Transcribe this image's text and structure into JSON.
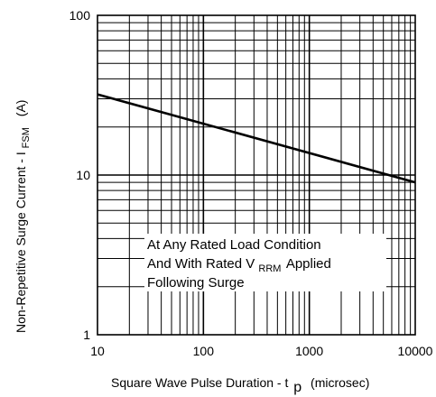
{
  "chart_data": {
    "type": "line",
    "x_scale": "log",
    "y_scale": "log",
    "xlim": [
      10,
      10000
    ],
    "ylim": [
      1,
      100
    ],
    "x_ticks": [
      "10",
      "100",
      "1000",
      "10000"
    ],
    "y_ticks": [
      "1",
      "10",
      "100"
    ],
    "grid": true,
    "xlabel": {
      "main": "Square Wave Pulse Duration - t",
      "sub": "p",
      "suffix": "(microsec)"
    },
    "ylabel": {
      "main": "Non-Repetitive Surge Current - I",
      "sub": "FSM",
      "suffix": "(A)"
    },
    "annotation": {
      "line1": "At Any Rated Load Condition",
      "line2_pre": "And With Rated V",
      "line2_sub": "RRM",
      "line2_post": "Applied",
      "line3": "Following Surge"
    },
    "series": [
      {
        "x": [
          10,
          10000
        ],
        "y": [
          32,
          9
        ]
      }
    ]
  }
}
